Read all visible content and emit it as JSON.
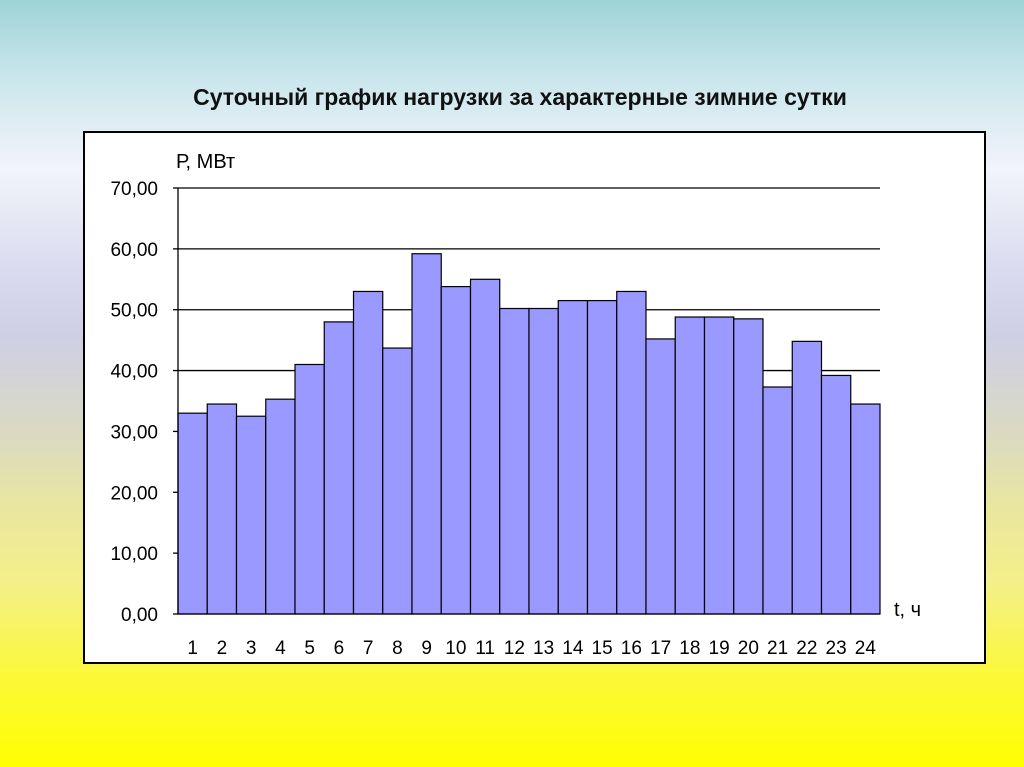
{
  "chart_data": {
    "type": "bar",
    "title": "Суточный график нагрузки за характерные зимние сутки",
    "ylabel": "Р, МВт",
    "xlabel": "t, ч",
    "ylim": [
      0,
      70
    ],
    "yticks": [
      "0,00",
      "10,00",
      "20,00",
      "30,00",
      "40,00",
      "50,00",
      "60,00",
      "70,00"
    ],
    "ytick_values": [
      0,
      10,
      20,
      30,
      40,
      50,
      60,
      70
    ],
    "categories": [
      "1",
      "2",
      "3",
      "4",
      "5",
      "6",
      "7",
      "8",
      "9",
      "10",
      "11",
      "12",
      "13",
      "14",
      "15",
      "16",
      "17",
      "18",
      "19",
      "20",
      "21",
      "22",
      "23",
      "24"
    ],
    "values": [
      33,
      34.5,
      32.5,
      35.3,
      41,
      48,
      53,
      43.7,
      59.2,
      53.8,
      55,
      50.2,
      50.2,
      51.5,
      51.5,
      53,
      45.2,
      48.8,
      48.8,
      48.5,
      37.3,
      44.8,
      39.2,
      34.5
    ],
    "grid": true,
    "bar_color": "#9999ff",
    "bar_edge_color": "#000000",
    "legend": "none"
  }
}
